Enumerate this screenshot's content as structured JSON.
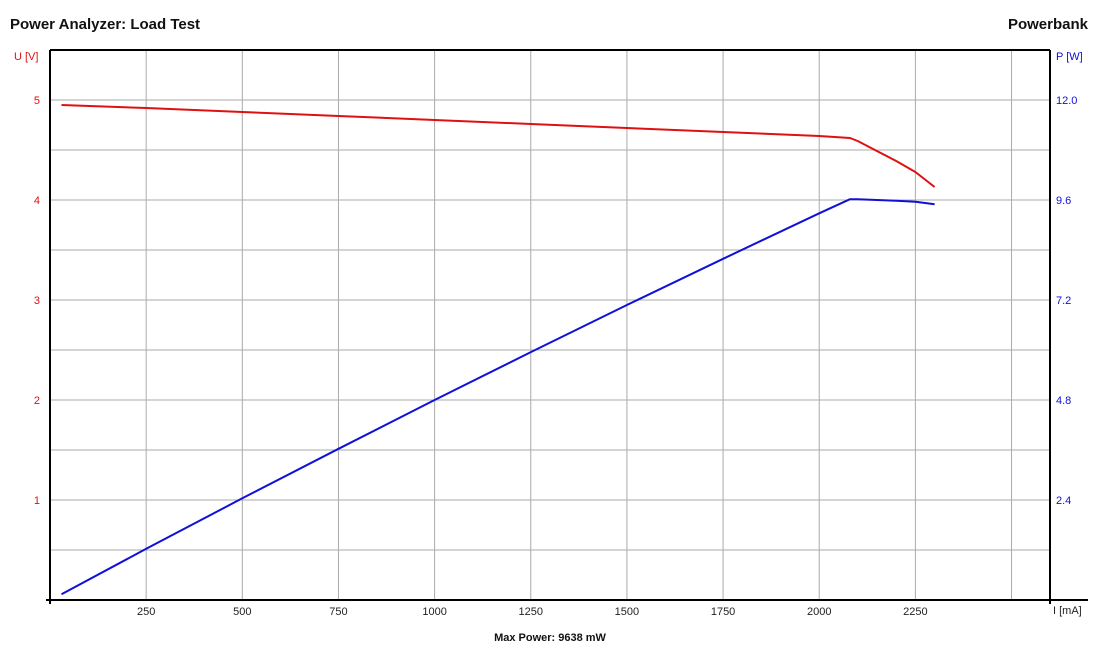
{
  "header": {
    "title_left": "Power Analyzer: Load Test",
    "title_right": "Powerbank"
  },
  "footer": {
    "max_power": "Max Power: 9638 mW"
  },
  "colors": {
    "voltage": "#e01010",
    "power": "#1010d8",
    "grid": "#aaaaaa",
    "axis": "#000000"
  },
  "chart_data": {
    "type": "line",
    "title": "Power Analyzer: Load Test",
    "xlabel": "I [mA]",
    "ylabel_left": "U [V]",
    "ylabel_right": "P [W]",
    "xlim": [
      0,
      2600
    ],
    "ylim_left": [
      0,
      5.5
    ],
    "ylim_right": [
      0,
      13.2
    ],
    "x_ticks": [
      "250",
      "500",
      "750",
      "1000",
      "1250",
      "1500",
      "1750",
      "2000",
      "2250"
    ],
    "y_left_ticks": [
      "1",
      "2",
      "3",
      "4",
      "5"
    ],
    "y_right_ticks": [
      "2.4",
      "4.8",
      "7.2",
      "9.6",
      "12.0"
    ],
    "grid": true,
    "series": [
      {
        "name": "U [V]",
        "axis": "left",
        "x": [
          30,
          250,
          500,
          750,
          1000,
          1250,
          1500,
          1750,
          2000,
          2080,
          2100,
          2150,
          2200,
          2250,
          2300
        ],
        "values": [
          4.95,
          4.92,
          4.88,
          4.84,
          4.8,
          4.76,
          4.72,
          4.68,
          4.64,
          4.62,
          4.59,
          4.49,
          4.39,
          4.28,
          4.13
        ]
      },
      {
        "name": "P [W]",
        "axis": "right",
        "x": [
          30,
          250,
          500,
          750,
          1000,
          1250,
          1500,
          1750,
          2000,
          2080,
          2100,
          2150,
          2200,
          2250,
          2300
        ],
        "values": [
          0.14,
          1.23,
          2.44,
          3.63,
          4.8,
          5.95,
          7.08,
          8.19,
          9.28,
          9.62,
          9.62,
          9.6,
          9.58,
          9.56,
          9.5
        ]
      }
    ],
    "annotations": [
      "Max Power: 9638 mW"
    ]
  }
}
